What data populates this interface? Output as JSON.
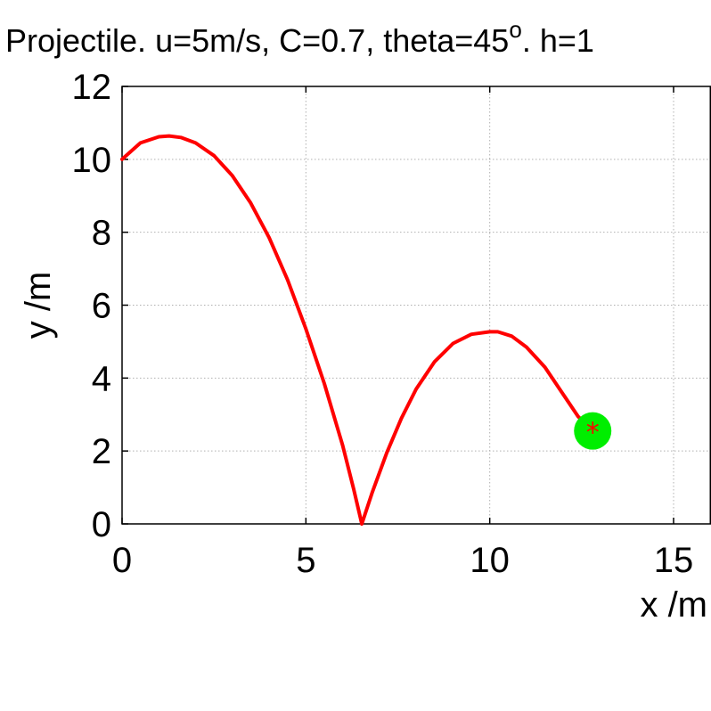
{
  "chart_data": {
    "type": "line",
    "title": {
      "text": "Projectile. u=5m/s, C=0.7, theta=45",
      "superscript": "o",
      "suffix": ". h=1"
    },
    "xlabel": "x /m",
    "ylabel": "y /m",
    "xlim": [
      0,
      16
    ],
    "ylim": [
      0,
      12
    ],
    "xticks": [
      0,
      5,
      10,
      15
    ],
    "yticks": [
      0,
      2,
      4,
      6,
      8,
      10,
      12
    ],
    "xtick_labels": [
      "0",
      "5",
      "10",
      "15"
    ],
    "ytick_labels": [
      "0",
      "2",
      "4",
      "6",
      "8",
      "10",
      "12"
    ],
    "grid": true,
    "series": [
      {
        "color": "#ff0000",
        "x": [
          0,
          0.5,
          1.0,
          1.28,
          1.6,
          2.0,
          2.5,
          3.0,
          3.5,
          4.0,
          4.5,
          5.0,
          5.5,
          6.0,
          6.3,
          6.52,
          6.8,
          7.2,
          7.6,
          8.0,
          8.5,
          9.0,
          9.5,
          10.0,
          10.22,
          10.6,
          11.0,
          11.5,
          12.0,
          12.4,
          12.8
        ],
        "y": [
          10.0,
          10.45,
          10.62,
          10.64,
          10.6,
          10.45,
          10.1,
          9.55,
          8.8,
          7.85,
          6.7,
          5.35,
          3.85,
          2.15,
          0.95,
          0.0,
          0.85,
          1.95,
          2.9,
          3.7,
          4.45,
          4.95,
          5.2,
          5.27,
          5.27,
          5.15,
          4.85,
          4.3,
          3.55,
          2.95,
          2.55
        ]
      }
    ],
    "marker": {
      "x": 12.8,
      "y": 2.55,
      "color": "#00ee00",
      "center_color": "#ff0000",
      "center_symbol": "*"
    }
  }
}
